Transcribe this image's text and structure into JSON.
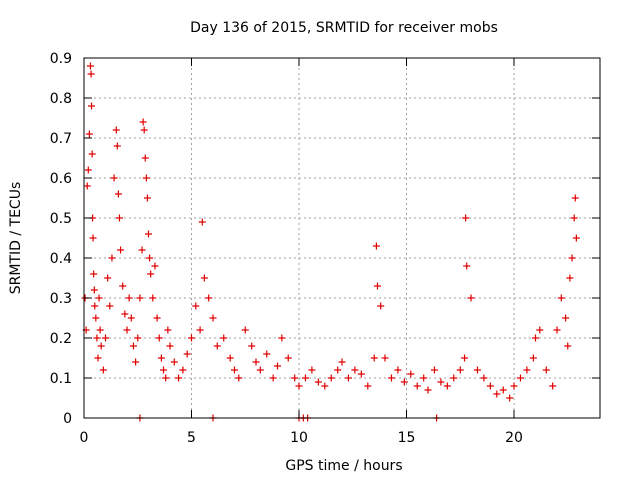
{
  "chart_data": {
    "type": "scatter",
    "title": "Day 136 of 2015, SRMTID for receiver mobs",
    "xlabel": "GPS time / hours",
    "ylabel": "SRMTID / TECUs",
    "xlim": [
      0,
      24
    ],
    "ylim": [
      0,
      0.9
    ],
    "x_ticks": [
      0,
      5,
      10,
      15,
      20
    ],
    "x_tick_labels": [
      "0",
      "5",
      "10",
      "15",
      "20"
    ],
    "y_ticks": [
      0,
      0.1,
      0.2,
      0.3,
      0.4,
      0.5,
      0.6,
      0.7,
      0.8,
      0.9
    ],
    "y_tick_labels": [
      "0",
      "0.1",
      "0.2",
      "0.3",
      "0.4",
      "0.5",
      "0.6",
      "0.7",
      "0.8",
      "0.9"
    ],
    "grid": true,
    "marker": "+",
    "color": "#e00000",
    "series": [
      {
        "name": "SRMTID",
        "x": [
          0.05,
          0.1,
          0.15,
          0.2,
          0.25,
          0.3,
          0.33,
          0.35,
          0.38,
          0.4,
          0.42,
          0.45,
          0.48,
          0.5,
          0.55,
          0.6,
          0.65,
          0.7,
          0.75,
          0.8,
          0.9,
          1.0,
          1.1,
          1.2,
          1.3,
          1.4,
          1.5,
          1.55,
          1.6,
          1.65,
          1.7,
          1.8,
          1.9,
          2.0,
          2.1,
          2.2,
          2.3,
          2.4,
          2.5,
          2.6,
          2.7,
          2.75,
          2.8,
          2.85,
          2.9,
          2.95,
          3.0,
          3.05,
          3.1,
          3.2,
          3.3,
          3.4,
          3.5,
          3.6,
          3.7,
          3.8,
          3.9,
          4.0,
          4.2,
          4.4,
          4.6,
          4.8,
          5.0,
          5.2,
          5.4,
          5.5,
          5.6,
          5.8,
          6.0,
          6.2,
          6.5,
          6.8,
          7.0,
          7.2,
          7.5,
          7.8,
          8.0,
          8.2,
          8.5,
          8.8,
          9.0,
          9.2,
          9.5,
          9.8,
          10.0,
          10.3,
          10.6,
          10.9,
          11.2,
          11.5,
          11.8,
          12.0,
          12.3,
          12.6,
          12.9,
          13.2,
          13.5,
          13.6,
          13.65,
          13.8,
          14.0,
          14.3,
          14.6,
          14.9,
          15.2,
          15.5,
          15.8,
          16.0,
          16.3,
          16.6,
          16.9,
          17.2,
          17.5,
          17.7,
          17.75,
          17.8,
          18.0,
          18.3,
          18.6,
          18.9,
          19.2,
          19.5,
          19.8,
          20.0,
          20.3,
          20.6,
          20.9,
          21.0,
          21.2,
          21.5,
          21.8,
          22.0,
          22.2,
          22.4,
          22.5,
          22.6,
          22.7,
          22.8,
          22.85,
          22.9
        ],
        "y": [
          0.3,
          0.22,
          0.58,
          0.62,
          0.71,
          0.88,
          0.86,
          0.78,
          0.66,
          0.5,
          0.45,
          0.36,
          0.32,
          0.28,
          0.25,
          0.2,
          0.15,
          0.3,
          0.22,
          0.18,
          0.12,
          0.2,
          0.35,
          0.28,
          0.4,
          0.6,
          0.72,
          0.68,
          0.56,
          0.5,
          0.42,
          0.33,
          0.26,
          0.22,
          0.3,
          0.25,
          0.18,
          0.14,
          0.2,
          0.3,
          0.42,
          0.74,
          0.72,
          0.65,
          0.6,
          0.55,
          0.46,
          0.4,
          0.36,
          0.3,
          0.38,
          0.25,
          0.2,
          0.15,
          0.12,
          0.1,
          0.22,
          0.18,
          0.14,
          0.1,
          0.12,
          0.16,
          0.2,
          0.28,
          0.22,
          0.49,
          0.35,
          0.3,
          0.25,
          0.18,
          0.2,
          0.15,
          0.12,
          0.1,
          0.22,
          0.18,
          0.14,
          0.12,
          0.16,
          0.1,
          0.13,
          0.2,
          0.15,
          0.1,
          0.08,
          0.1,
          0.12,
          0.09,
          0.08,
          0.1,
          0.12,
          0.14,
          0.1,
          0.12,
          0.11,
          0.08,
          0.15,
          0.43,
          0.33,
          0.28,
          0.15,
          0.1,
          0.12,
          0.09,
          0.11,
          0.08,
          0.1,
          0.07,
          0.12,
          0.09,
          0.08,
          0.1,
          0.12,
          0.15,
          0.5,
          0.38,
          0.3,
          0.12,
          0.1,
          0.08,
          0.06,
          0.07,
          0.05,
          0.08,
          0.1,
          0.12,
          0.15,
          0.2,
          0.22,
          0.12,
          0.08,
          0.22,
          0.3,
          0.25,
          0.18,
          0.35,
          0.4,
          0.5,
          0.55,
          0.45
        ],
        "zero_markers_x": [
          2.6,
          6.0,
          10.0,
          10.2,
          10.4,
          16.4
        ]
      }
    ]
  }
}
